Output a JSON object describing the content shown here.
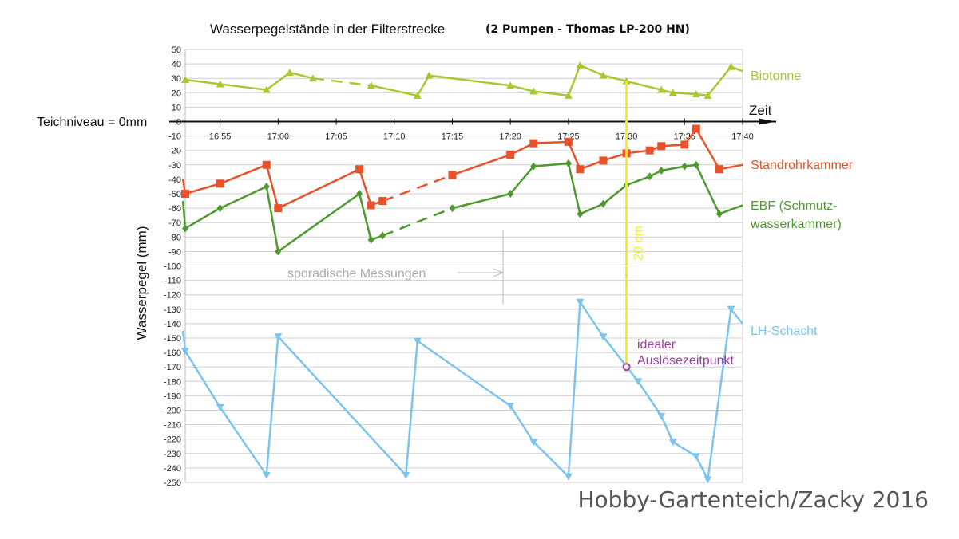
{
  "chart_data": {
    "type": "line",
    "title": "Wasserpegelstände in der Filterstrecke",
    "subtitle": "(2 Pumpen - Thomas LP-200 HN)",
    "ylabel": "Wasserpegel (mm)",
    "xlabel": "Zeit",
    "zero_label": "Teichniveau = 0mm",
    "ylim": [
      -250,
      50
    ],
    "y_step": 10,
    "xlim": [
      "16:52",
      "17:40"
    ],
    "x_ticks": [
      "16:55",
      "17:00",
      "17:05",
      "17:10",
      "17:15",
      "17:20",
      "17:25",
      "17:30",
      "17:35",
      "17:40"
    ],
    "grid": true,
    "series": [
      {
        "name": "Biotonne",
        "color": "#a8c832",
        "marker": "triangle-up",
        "segments": [
          {
            "dashed": false,
            "points": [
              [
                "16:52",
                29
              ],
              [
                "16:55",
                26
              ],
              [
                "16:59",
                22
              ],
              [
                "17:01",
                34
              ],
              [
                "17:03",
                30
              ]
            ]
          },
          {
            "dashed": true,
            "points": [
              [
                "17:03",
                30
              ],
              [
                "17:08",
                25
              ]
            ]
          },
          {
            "dashed": false,
            "points": [
              [
                "17:08",
                25
              ],
              [
                "17:12",
                18
              ],
              [
                "17:13",
                32
              ],
              [
                "17:20",
                25
              ],
              [
                "17:22",
                21
              ],
              [
                "17:25",
                18
              ],
              [
                "17:26",
                39
              ],
              [
                "17:28",
                32
              ],
              [
                "17:30",
                28
              ],
              [
                "17:33",
                22
              ],
              [
                "17:34",
                20
              ],
              [
                "17:36",
                19
              ],
              [
                "17:37",
                18
              ],
              [
                "17:39",
                38
              ],
              [
                "17:40",
                35
              ]
            ]
          }
        ]
      },
      {
        "name": "Standrohrkammer",
        "color": "#e8522a",
        "marker": "square",
        "segments": [
          {
            "dashed": false,
            "points": [
              [
                "16:51.8",
                -40
              ],
              [
                "16:52",
                -50
              ],
              [
                "16:55",
                -43
              ],
              [
                "16:59",
                -30
              ],
              [
                "17:00",
                -60
              ],
              [
                "17:07",
                -33
              ],
              [
                "17:08",
                -58
              ],
              [
                "17:09",
                -55
              ]
            ]
          },
          {
            "dashed": true,
            "points": [
              [
                "17:09",
                -55
              ],
              [
                "17:15",
                -37
              ]
            ]
          },
          {
            "dashed": false,
            "points": [
              [
                "17:15",
                -37
              ],
              [
                "17:20",
                -23
              ],
              [
                "17:22",
                -15
              ],
              [
                "17:25",
                -14
              ],
              [
                "17:26",
                -33
              ],
              [
                "17:28",
                -27
              ],
              [
                "17:30",
                -22
              ],
              [
                "17:32",
                -20
              ],
              [
                "17:33",
                -17
              ],
              [
                "17:35",
                -16
              ],
              [
                "17:36",
                -5
              ],
              [
                "17:38",
                -33
              ],
              [
                "17:40",
                -30
              ]
            ]
          }
        ]
      },
      {
        "name": "EBF (Schmutz-",
        "name_line2": "wasserkammer)",
        "color": "#4f9a2e",
        "marker": "diamond",
        "segments": [
          {
            "dashed": false,
            "points": [
              [
                "16:51.8",
                -55
              ],
              [
                "16:52",
                -74
              ],
              [
                "16:55",
                -60
              ],
              [
                "16:59",
                -45
              ],
              [
                "17:00",
                -90
              ],
              [
                "17:07",
                -50
              ],
              [
                "17:08",
                -82
              ],
              [
                "17:09",
                -79
              ]
            ]
          },
          {
            "dashed": true,
            "points": [
              [
                "17:09",
                -79
              ],
              [
                "17:15",
                -60
              ]
            ]
          },
          {
            "dashed": false,
            "points": [
              [
                "17:15",
                -60
              ],
              [
                "17:20",
                -50
              ],
              [
                "17:22",
                -31
              ],
              [
                "17:25",
                -29
              ],
              [
                "17:26",
                -64
              ],
              [
                "17:28",
                -57
              ],
              [
                "17:30",
                -44
              ],
              [
                "17:32",
                -38
              ],
              [
                "17:33",
                -34
              ],
              [
                "17:35",
                -31
              ],
              [
                "17:36",
                -30
              ],
              [
                "17:38",
                -64
              ],
              [
                "17:40",
                -58
              ]
            ]
          }
        ]
      },
      {
        "name": "LH-Schacht",
        "color": "#7cc4ee",
        "marker": "triangle-down",
        "segments": [
          {
            "dashed": false,
            "points": [
              [
                "16:51.8",
                -145
              ],
              [
                "16:52",
                -159
              ],
              [
                "16:55",
                -198
              ],
              [
                "16:59",
                -245
              ],
              [
                "17:00",
                -149
              ],
              [
                "17:11",
                -245
              ],
              [
                "17:12",
                -152
              ],
              [
                "17:20",
                -197
              ],
              [
                "17:22",
                -222
              ],
              [
                "17:25",
                -246
              ],
              [
                "17:26",
                -125
              ],
              [
                "17:28",
                -149
              ],
              [
                "17:31",
                -180
              ],
              [
                "17:33",
                -204
              ],
              [
                "17:34",
                -222
              ],
              [
                "17:36",
                -232
              ],
              [
                "17:37",
                -248
              ],
              [
                "17:39",
                -130
              ],
              [
                "17:40",
                -140
              ]
            ]
          }
        ]
      }
    ],
    "annotations": {
      "sporadic_label": "sporadische Messungen",
      "measure_label": "20 cm",
      "measure_from": [
        "17:30",
        28
      ],
      "measure_to": [
        "17:30",
        -170
      ],
      "trigger_label_1": "idealer",
      "trigger_label_2": "Auslösezeitpunkt",
      "trigger_point": [
        "17:30",
        -170
      ],
      "accent_yellow": "#f0f020",
      "accent_purple": "#9b3fa0"
    }
  },
  "credit": "Hobby-Gartenteich/Zacky 2016"
}
